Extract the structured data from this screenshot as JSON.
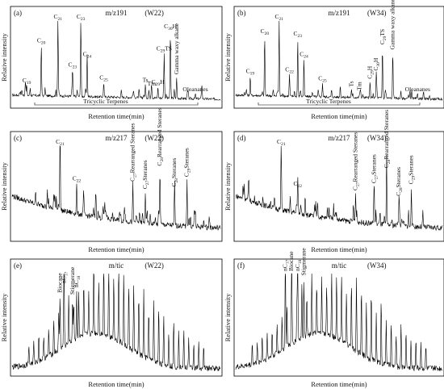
{
  "figure": {
    "x_axis_label": "Retention time(min)",
    "y_axis_label": "Relative intensity"
  },
  "chart_data": [
    {
      "type": "line",
      "panel_label": "(a)",
      "ion": "m/z191",
      "well": "(W22)",
      "peaks": [
        {
          "label": "C19",
          "sub": "19",
          "base": "C",
          "x": 0.07,
          "height": 0.13
        },
        {
          "label": "C20",
          "sub": "20",
          "base": "C",
          "x": 0.14,
          "height": 0.62
        },
        {
          "label": "C21",
          "sub": "21",
          "base": "C",
          "x": 0.22,
          "height": 0.95
        },
        {
          "label": "C23",
          "sub": "23",
          "base": "C",
          "x": 0.29,
          "height": 0.33
        },
        {
          "label": "C23",
          "sub": "23",
          "base": "C",
          "x": 0.33,
          "height": 0.95
        },
        {
          "label": "C24",
          "sub": "24",
          "base": "C",
          "x": 0.36,
          "height": 0.46
        },
        {
          "label": "C25",
          "sub": "25",
          "base": "C",
          "x": 0.44,
          "height": 0.18
        },
        {
          "label": "Ts",
          "sub": "",
          "base": "Ts",
          "x": 0.64,
          "height": 0.16
        },
        {
          "label": "Tm",
          "sub": "",
          "base": "Tm",
          "x": 0.67,
          "height": 0.12
        },
        {
          "label": "C29H",
          "sub": "29",
          "base": "C",
          "suffix": "H",
          "x": 0.7,
          "height": 0.14
        },
        {
          "label": "C29TS",
          "sub": "29",
          "base": "C",
          "suffix": "TS",
          "x": 0.73,
          "height": 0.55
        },
        {
          "label": "C30H",
          "sub": "30",
          "base": "C",
          "suffix": "H",
          "x": 0.76,
          "height": 0.82
        },
        {
          "label": "Gamma waxy alkane",
          "sub": "",
          "base": "Gamma waxy alkane",
          "x": 0.79,
          "height": 0.26,
          "rotated": true
        },
        {
          "label": "Oleananes",
          "sub": "",
          "base": "Oleananes",
          "x": 0.88,
          "height": 0.06
        }
      ],
      "group_label": "Tricyclic Terpenes",
      "profile": "flat"
    },
    {
      "type": "line",
      "panel_label": "(b)",
      "ion": "m/z191",
      "well": "(W34)",
      "peaks": [
        {
          "label": "C19",
          "sub": "19",
          "base": "C",
          "x": 0.07,
          "height": 0.24
        },
        {
          "label": "C20",
          "sub": "20",
          "base": "C",
          "x": 0.14,
          "height": 0.73
        },
        {
          "label": "C21",
          "sub": "21",
          "base": "C",
          "x": 0.21,
          "height": 0.95
        },
        {
          "label": "C22",
          "sub": "22",
          "base": "C",
          "x": 0.26,
          "height": 0.27
        },
        {
          "label": "C23",
          "sub": "23",
          "base": "C",
          "x": 0.3,
          "height": 0.71
        },
        {
          "label": "C24",
          "sub": "24",
          "base": "C",
          "x": 0.33,
          "height": 0.46
        },
        {
          "label": "C25",
          "sub": "25",
          "base": "C",
          "x": 0.42,
          "height": 0.17
        },
        {
          "label": "Ts",
          "sub": "",
          "base": "Ts",
          "x": 0.56,
          "height": 0.1,
          "rotated": true
        },
        {
          "label": "Tm",
          "sub": "",
          "base": "Tm",
          "x": 0.6,
          "height": 0.06,
          "rotated": true
        },
        {
          "label": "C29H",
          "sub": "29",
          "base": "C",
          "suffix": "H",
          "x": 0.65,
          "height": 0.2,
          "rotated": true
        },
        {
          "label": "C30H",
          "sub": "30",
          "base": "C",
          "suffix": "H",
          "x": 0.68,
          "height": 0.3,
          "rotated": true
        },
        {
          "label": "C29TS",
          "sub": "29",
          "base": "C",
          "suffix": "TS",
          "x": 0.71,
          "height": 0.62,
          "rotated": true
        },
        {
          "label": "Gamma waxy alkane",
          "sub": "",
          "base": "Gamma waxy alkane",
          "x": 0.76,
          "height": 0.56,
          "rotated": true
        },
        {
          "label": "Oleananes",
          "sub": "",
          "base": "Oleananes",
          "x": 0.88,
          "height": 0.06
        }
      ],
      "group_label": "Tricyclic Terpenes",
      "profile": "flat"
    },
    {
      "type": "line",
      "panel_label": "(c)",
      "ion": "m/z217",
      "well": "(W22)",
      "peaks": [
        {
          "label": "C21",
          "sub": "21",
          "base": "C",
          "x": 0.23,
          "height": 0.93
        },
        {
          "label": "C22",
          "sub": "22",
          "base": "C",
          "x": 0.31,
          "height": 0.34
        },
        {
          "label": "C27 Rearranged Steranes",
          "sub": "27",
          "base": "C",
          "suffix": "Rearranged Steranes",
          "x": 0.58,
          "height": 0.42,
          "rotated": true
        },
        {
          "label": "C27 Steranes",
          "sub": "27",
          "base": "C",
          "suffix": "Steranes",
          "x": 0.64,
          "height": 0.35,
          "rotated": true
        },
        {
          "label": "C28 Rearranged Steranes",
          "sub": "28",
          "base": "C",
          "suffix": "Rearranged Steranes",
          "x": 0.71,
          "height": 0.62,
          "rotated": true
        },
        {
          "label": "C28 Steranes",
          "sub": "28",
          "base": "C",
          "suffix": "Steranes",
          "x": 0.78,
          "height": 0.4,
          "rotated": true
        },
        {
          "label": "C29 Steranes",
          "sub": "29",
          "base": "C",
          "suffix": "Steranes",
          "x": 0.84,
          "height": 0.52,
          "rotated": true
        }
      ],
      "profile": "decay"
    },
    {
      "type": "line",
      "panel_label": "(d)",
      "ion": "m/z217",
      "well": "(W34)",
      "peaks": [
        {
          "label": "C21",
          "sub": "21",
          "base": "C",
          "x": 0.22,
          "height": 0.8
        },
        {
          "label": "C22",
          "sub": "22",
          "base": "C",
          "x": 0.3,
          "height": 0.28
        },
        {
          "label": "C27 Rearranged Steranes",
          "sub": "27",
          "base": "C",
          "suffix": "Rearranged Steranes",
          "x": 0.58,
          "height": 0.32,
          "rotated": true
        },
        {
          "label": "C27 Steranes",
          "sub": "27",
          "base": "C",
          "suffix": "Steranes",
          "x": 0.67,
          "height": 0.42,
          "rotated": true
        },
        {
          "label": "C28 Rearranged Steranes",
          "sub": "28",
          "base": "C",
          "suffix": "Rearranged Steranes",
          "x": 0.73,
          "height": 0.6,
          "rotated": true
        },
        {
          "label": "C28 Steranes",
          "sub": "28",
          "base": "C",
          "suffix": "Steranes",
          "x": 0.79,
          "height": 0.3,
          "rotated": true
        },
        {
          "label": "C29 Steranes",
          "sub": "29",
          "base": "C",
          "suffix": "Steranes",
          "x": 0.85,
          "height": 0.44,
          "rotated": true
        }
      ],
      "profile": "decay"
    },
    {
      "type": "line",
      "panel_label": "(e)",
      "ion": "m/tic",
      "well": "(W22)",
      "peaks": [
        {
          "label": "nC17",
          "sub": "17",
          "base": "nC",
          "x": 0.25,
          "height": 0.62,
          "rotated": true
        },
        {
          "label": "Biocane",
          "sub": "",
          "base": "Biocane",
          "x": 0.23,
          "height": 0.55,
          "rotated": true
        },
        {
          "label": "Stigmerane",
          "sub": "",
          "base": "Stigmerane",
          "x": 0.29,
          "height": 0.45,
          "rotated": true
        },
        {
          "label": "nC18",
          "sub": "18",
          "base": "nC",
          "x": 0.31,
          "height": 0.5,
          "rotated": true
        }
      ],
      "profile": "hump"
    },
    {
      "type": "line",
      "panel_label": "(f)",
      "ion": "m/tic",
      "well": "(W34)",
      "peaks": [
        {
          "label": "nC17",
          "sub": "17",
          "base": "nC",
          "x": 0.24,
          "height": 0.95,
          "rotated": true
        },
        {
          "label": "Biocane",
          "sub": "",
          "base": "Biocane",
          "x": 0.27,
          "height": 0.8,
          "rotated": true
        },
        {
          "label": "nC18",
          "sub": "18",
          "base": "nC",
          "x": 0.3,
          "height": 0.86,
          "rotated": true
        },
        {
          "label": "Stigmerane",
          "sub": "",
          "base": "Stigmerane",
          "x": 0.33,
          "height": 0.6,
          "rotated": true
        }
      ],
      "profile": "hump"
    }
  ]
}
